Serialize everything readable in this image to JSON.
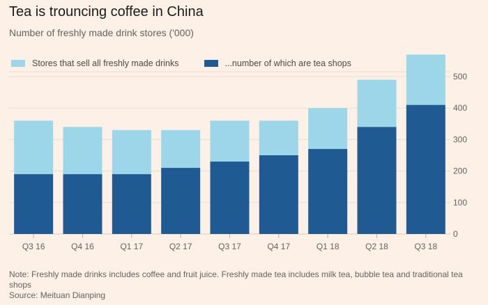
{
  "colors": {
    "background": "#fdf1e7",
    "all_stores": "#9dd5e9",
    "tea_shops": "#1f5a92",
    "grid": "#eadcd0",
    "axis_text": "#66605c"
  },
  "header": {
    "title": "Tea is trouncing coffee in China",
    "subtitle": "Number of freshly made drink stores ('000)"
  },
  "chart_data": {
    "type": "bar",
    "title": "Tea is trouncing coffee in China",
    "subtitle": "Number of freshly made drink stores ('000)",
    "xlabel": "",
    "ylabel": "",
    "ylim": [
      0,
      580
    ],
    "yticks": [
      0,
      100,
      200,
      300,
      400,
      500
    ],
    "y_axis_side": "right",
    "grid": true,
    "legend_placement": "top-left",
    "categories": [
      "Q3 16",
      "Q4 16",
      "Q1 17",
      "Q2 17",
      "Q3 17",
      "Q4 17",
      "Q1 18",
      "Q2 18",
      "Q3 18"
    ],
    "series": [
      {
        "name": "Stores that sell all freshly made drinks",
        "values": [
          360,
          340,
          330,
          330,
          360,
          360,
          400,
          490,
          570
        ]
      },
      {
        "name": "...number of which are tea shops",
        "values": [
          190,
          190,
          190,
          210,
          230,
          250,
          270,
          340,
          410
        ]
      }
    ]
  },
  "footer": {
    "note": "Note: Freshly made drinks includes coffee and fruit juice. Freshly made tea includes milk tea, bubble tea and traditional tea shops",
    "source": "Source: Meituan Dianping"
  }
}
